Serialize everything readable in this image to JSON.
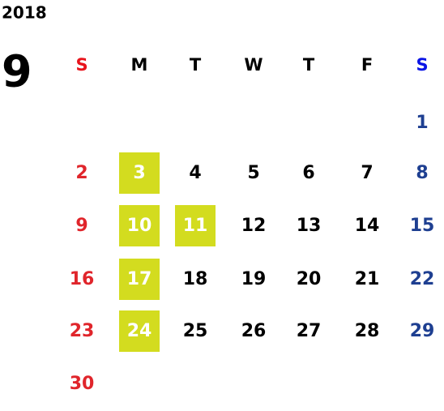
{
  "calendar": {
    "year": "2018",
    "month": "9",
    "weekdays": [
      "S",
      "M",
      "T",
      "W",
      "T",
      "F",
      "S"
    ],
    "weeks": [
      [
        null,
        null,
        null,
        null,
        null,
        null,
        {
          "day": 1
        }
      ],
      [
        {
          "day": 2
        },
        {
          "day": 3,
          "highlight": true
        },
        {
          "day": 4
        },
        {
          "day": 5
        },
        {
          "day": 6
        },
        {
          "day": 7
        },
        {
          "day": 8
        }
      ],
      [
        {
          "day": 9
        },
        {
          "day": 10,
          "highlight": true
        },
        {
          "day": 11,
          "highlight": true
        },
        {
          "day": 12
        },
        {
          "day": 13
        },
        {
          "day": 14
        },
        {
          "day": 15
        }
      ],
      [
        {
          "day": 16
        },
        {
          "day": 17,
          "highlight": true
        },
        {
          "day": 18
        },
        {
          "day": 19
        },
        {
          "day": 20
        },
        {
          "day": 21
        },
        {
          "day": 22
        }
      ],
      [
        {
          "day": 23
        },
        {
          "day": 24,
          "highlight": true
        },
        {
          "day": 25
        },
        {
          "day": 26
        },
        {
          "day": 27
        },
        {
          "day": 28
        },
        {
          "day": 29
        }
      ],
      [
        {
          "day": 30
        },
        null,
        null,
        null,
        null,
        null,
        null
      ]
    ]
  }
}
